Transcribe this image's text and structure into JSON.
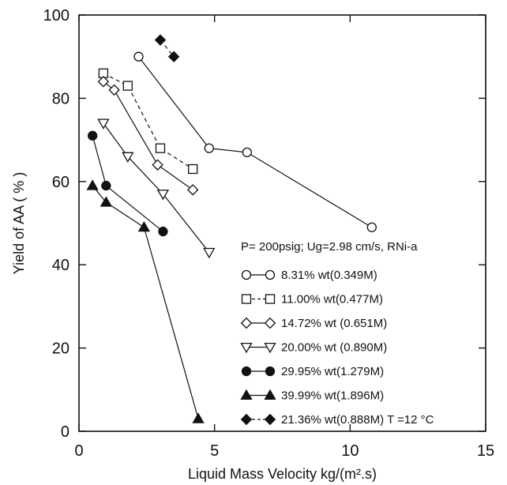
{
  "chart_data": {
    "type": "scatter",
    "xlabel": "Liquid Mass Velocity  kg/(m².s)",
    "ylabel": "Yield of AA ( % )",
    "xlim": [
      0,
      15
    ],
    "ylim": [
      0,
      100
    ],
    "x_ticks": [
      "0",
      "5",
      "10",
      "15"
    ],
    "y_ticks": [
      "0",
      "20",
      "40",
      "60",
      "80",
      "100"
    ],
    "grid": false,
    "legend_position": "bottom-right",
    "condition_text": "P= 200psig; Ug=2.98 cm/s, RNi-a",
    "series": [
      {
        "name": "8.31% wt(0.349M)",
        "marker": "circle-open",
        "line": "solid",
        "x": [
          2.2,
          4.8,
          6.2,
          10.8
        ],
        "y": [
          90,
          68,
          67,
          49
        ]
      },
      {
        "name": "11.00% wt(0.477M)",
        "marker": "square-open",
        "line": "dashed",
        "x": [
          0.9,
          1.8,
          3.0,
          4.2
        ],
        "y": [
          86,
          83,
          68,
          63
        ]
      },
      {
        "name": "14.72% wt (0.651M)",
        "marker": "diamond-open",
        "line": "solid",
        "x": [
          0.9,
          1.3,
          2.9,
          4.2
        ],
        "y": [
          84,
          82,
          64,
          58
        ]
      },
      {
        "name": "20.00% wt (0.890M)",
        "marker": "triangle-down-open",
        "line": "solid",
        "x": [
          0.9,
          1.8,
          3.1,
          4.8
        ],
        "y": [
          74,
          66,
          57,
          43
        ]
      },
      {
        "name": "29.95% wt(1.279M)",
        "marker": "circle-filled",
        "line": "solid",
        "x": [
          0.5,
          1.0,
          3.1
        ],
        "y": [
          71,
          59,
          48
        ]
      },
      {
        "name": "39.99% wt(1.896M)",
        "marker": "triangle-up-filled",
        "line": "solid",
        "x": [
          0.5,
          1.0,
          2.4,
          4.4
        ],
        "y": [
          59,
          55,
          49,
          3
        ]
      },
      {
        "name": "21.36% wt(0.888M) T =12 °C",
        "marker": "diamond-filled",
        "line": "dashed",
        "x": [
          3.0,
          3.5
        ],
        "y": [
          94,
          90
        ]
      }
    ]
  }
}
